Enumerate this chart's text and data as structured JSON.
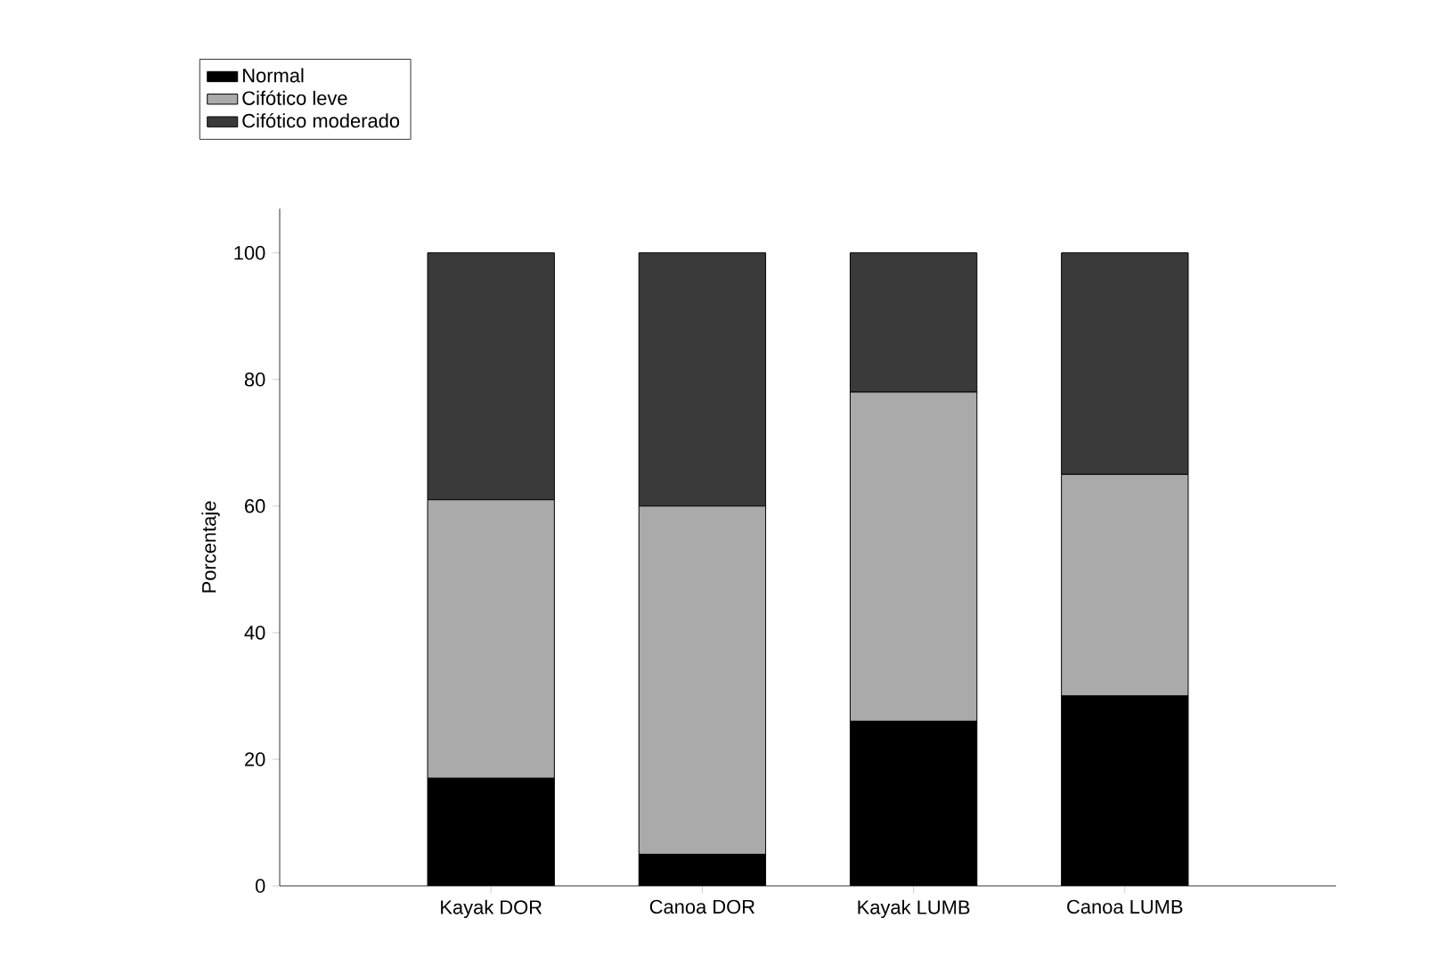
{
  "chart_data": {
    "type": "bar",
    "stacked": true,
    "ylabel": "Porcentaje",
    "categories": [
      "Kayak DOR",
      "Canoa DOR",
      "Kayak LUMB",
      "Canoa LUMB"
    ],
    "series": [
      {
        "name": "Normal",
        "color": "#000000",
        "values": [
          17,
          5,
          26,
          30
        ]
      },
      {
        "name": "Cifótico leve",
        "color": "#aaaaaa",
        "values": [
          44,
          55,
          52,
          35
        ]
      },
      {
        "name": "Cifótico moderado",
        "color": "#3a3a3a",
        "values": [
          39,
          40,
          22,
          35
        ]
      }
    ],
    "ylim": [
      0,
      107
    ],
    "yticks": [
      0,
      20,
      40,
      60,
      80,
      100
    ],
    "legend": "top left",
    "grid": false
  }
}
